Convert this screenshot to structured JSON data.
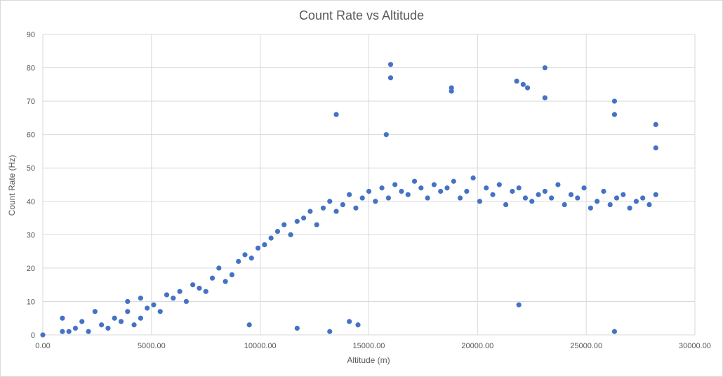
{
  "chart_data": {
    "type": "scatter",
    "title": "Count Rate vs Altitude",
    "xlabel": "Altitude (m)",
    "ylabel": "Count Rate (Hz)",
    "xlim": [
      0,
      30000
    ],
    "ylim": [
      0,
      90
    ],
    "x_ticks": [
      "0.00",
      "5000.00",
      "10000.00",
      "15000.00",
      "20000.00",
      "25000.00",
      "30000.00"
    ],
    "y_ticks": [
      "0",
      "10",
      "20",
      "30",
      "40",
      "50",
      "60",
      "70",
      "80",
      "90"
    ],
    "grid": true,
    "legend": "none",
    "color": "#4472c4",
    "series": [
      {
        "x": [
          0,
          900,
          1200,
          1500,
          1800,
          2100,
          2400,
          2700,
          3000,
          3300,
          3600,
          3900,
          4200,
          4500,
          4800,
          5100,
          5400,
          5700,
          6000,
          6300,
          6600,
          6900,
          7200,
          7500,
          7800,
          8100,
          8400,
          8700,
          9000,
          9300,
          9600,
          9900,
          10200,
          10500,
          10800,
          11100,
          11400,
          11700,
          12000,
          12300,
          12600,
          12900,
          13200,
          13500,
          13800,
          14100,
          14400,
          14700,
          15000,
          15300,
          15600,
          15900,
          16200,
          16500,
          16800,
          17100,
          17400,
          17700,
          18000,
          18300,
          18600,
          18900,
          19200,
          19500,
          19800,
          20100,
          20400,
          20700,
          21000,
          21300,
          21600,
          21900,
          22200,
          22500,
          22800,
          23100,
          23400,
          23700,
          24000,
          24300,
          24600,
          24900,
          25200,
          25500,
          25800,
          26100,
          26400,
          26700,
          27000,
          27300,
          27600,
          27900,
          28200,
          16000,
          16000,
          18800,
          18800,
          21800,
          22100,
          22300,
          23100,
          23100,
          26300,
          26300,
          13500,
          15800,
          28200,
          28200,
          21900,
          26300,
          13200,
          14500,
          900,
          3900,
          4500,
          9500,
          11700,
          14100
        ],
        "y": [
          0,
          5,
          1,
          2,
          4,
          1,
          7,
          3,
          2,
          5,
          4,
          10,
          3,
          11,
          8,
          9,
          7,
          12,
          11,
          13,
          10,
          15,
          14,
          13,
          17,
          20,
          16,
          18,
          22,
          24,
          23,
          26,
          27,
          29,
          31,
          33,
          30,
          34,
          35,
          37,
          33,
          38,
          40,
          37,
          39,
          42,
          38,
          41,
          43,
          40,
          44,
          41,
          45,
          43,
          42,
          46,
          44,
          41,
          45,
          43,
          44,
          46,
          41,
          43,
          47,
          40,
          44,
          42,
          45,
          39,
          43,
          44,
          41,
          40,
          42,
          43,
          41,
          45,
          39,
          42,
          41,
          44,
          38,
          40,
          43,
          39,
          41,
          42,
          38,
          40,
          41,
          39,
          42,
          81,
          77,
          74,
          73,
          76,
          75,
          74,
          80,
          71,
          70,
          66,
          66,
          60,
          63,
          56,
          9,
          1,
          1,
          3,
          1,
          7,
          5,
          3,
          2,
          4
        ]
      }
    ]
  }
}
